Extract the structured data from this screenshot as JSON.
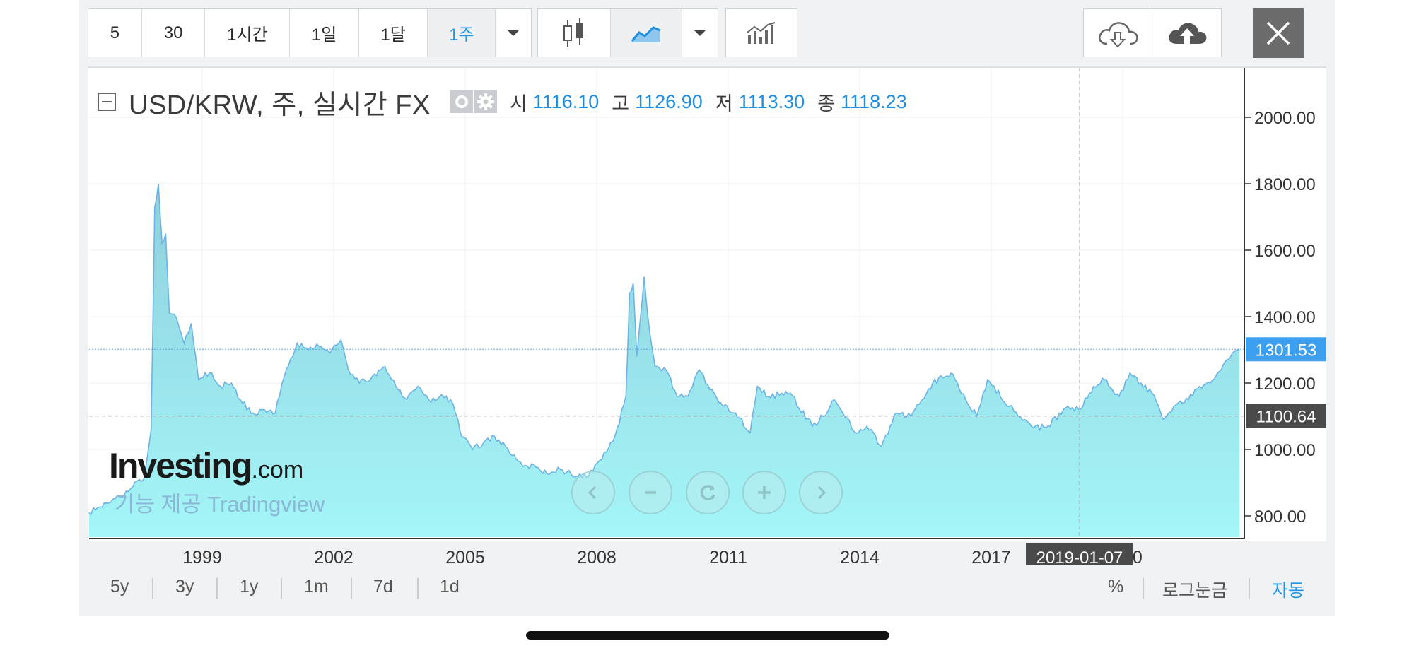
{
  "toolbar": {
    "intervals": [
      "5",
      "30",
      "1시간",
      "1일",
      "1달",
      "1주"
    ],
    "active_interval": "1주",
    "chart_type_icons": [
      "candlestick-icon",
      "area-chart-icon"
    ],
    "indicator_icon": "indicators-icon",
    "cloud_icons": [
      "cloud-download-icon",
      "cloud-upload-icon"
    ],
    "close_icon": "close-icon"
  },
  "legend": {
    "title": "USD/KRW, 주, 실시간 FX",
    "ohlc": [
      {
        "label": "시",
        "value": "1116.10"
      },
      {
        "label": "고",
        "value": "1126.90"
      },
      {
        "label": "저",
        "value": "1113.30"
      },
      {
        "label": "종",
        "value": "1118.23"
      }
    ]
  },
  "watermark": {
    "brand": "Investing",
    "brand_suffix": ".com",
    "sub": "기능 제공 Tradingview"
  },
  "range_buttons": [
    "5y",
    "3y",
    "1y",
    "1m",
    "7d",
    "1d"
  ],
  "right_options": [
    "%",
    "로그눈금",
    "자동"
  ],
  "active_option": "자동",
  "colors": {
    "accent": "#1e96e6",
    "line": "#6cb4e6",
    "area_top": "#8fcfdc",
    "area_bottom": "#a4f6f8"
  },
  "chart_data": {
    "type": "area",
    "title": "USD/KRW, 주, 실시간 FX",
    "xlabel": "",
    "ylabel": "",
    "x_ticks": [
      "1999",
      "2002",
      "2005",
      "2008",
      "2011",
      "2014",
      "2017",
      "2020"
    ],
    "y_ticks": [
      "800.00",
      "1000.00",
      "1200.00",
      "1400.00",
      "1600.00",
      "1800.00",
      "2000.00"
    ],
    "ylim": [
      700,
      2140
    ],
    "xlim": [
      "1996-06-01",
      "2022-10-15"
    ],
    "price_label": "1301.53",
    "crosshair_price": "1100.64",
    "crosshair_date": "2019-01-07",
    "grid": true,
    "series": [
      {
        "values": [
          [
            "1996-06",
            810
          ],
          [
            "1996-12",
            842
          ],
          [
            "1997-06",
            888
          ],
          [
            "1997-09",
            910
          ],
          [
            "1997-11",
            1060
          ],
          [
            "1997-12",
            1730
          ],
          [
            "1998-01",
            1800
          ],
          [
            "1998-02",
            1620
          ],
          [
            "1998-03",
            1650
          ],
          [
            "1998-04",
            1410
          ],
          [
            "1998-06",
            1395
          ],
          [
            "1998-08",
            1320
          ],
          [
            "1998-10",
            1380
          ],
          [
            "1998-12",
            1210
          ],
          [
            "1999-03",
            1230
          ],
          [
            "1999-06",
            1190
          ],
          [
            "1999-09",
            1200
          ],
          [
            "1999-12",
            1140
          ],
          [
            "2000-03",
            1110
          ],
          [
            "2000-06",
            1120
          ],
          [
            "2000-09",
            1110
          ],
          [
            "2000-12",
            1240
          ],
          [
            "2001-03",
            1320
          ],
          [
            "2001-06",
            1300
          ],
          [
            "2001-09",
            1310
          ],
          [
            "2001-12",
            1290
          ],
          [
            "2002-03",
            1330
          ],
          [
            "2002-05",
            1240
          ],
          [
            "2002-08",
            1200
          ],
          [
            "2002-11",
            1210
          ],
          [
            "2003-03",
            1250
          ],
          [
            "2003-06",
            1190
          ],
          [
            "2003-09",
            1150
          ],
          [
            "2003-12",
            1190
          ],
          [
            "2004-03",
            1150
          ],
          [
            "2004-06",
            1160
          ],
          [
            "2004-09",
            1150
          ],
          [
            "2004-11",
            1090
          ],
          [
            "2004-12",
            1040
          ],
          [
            "2005-03",
            1000
          ],
          [
            "2005-06",
            1020
          ],
          [
            "2005-09",
            1040
          ],
          [
            "2005-12",
            1010
          ],
          [
            "2006-03",
            970
          ],
          [
            "2006-06",
            950
          ],
          [
            "2006-09",
            945
          ],
          [
            "2006-12",
            925
          ],
          [
            "2007-03",
            940
          ],
          [
            "2007-06",
            925
          ],
          [
            "2007-09",
            915
          ],
          [
            "2007-12",
            935
          ],
          [
            "2008-03",
            990
          ],
          [
            "2008-06",
            1040
          ],
          [
            "2008-09",
            1160
          ],
          [
            "2008-10",
            1470
          ],
          [
            "2008-11",
            1500
          ],
          [
            "2008-12",
            1280
          ],
          [
            "2009-02",
            1520
          ],
          [
            "2009-03",
            1400
          ],
          [
            "2009-05",
            1250
          ],
          [
            "2009-08",
            1240
          ],
          [
            "2009-11",
            1160
          ],
          [
            "2010-02",
            1160
          ],
          [
            "2010-05",
            1240
          ],
          [
            "2010-08",
            1180
          ],
          [
            "2010-11",
            1140
          ],
          [
            "2011-03",
            1110
          ],
          [
            "2011-07",
            1050
          ],
          [
            "2011-09",
            1190
          ],
          [
            "2011-12",
            1160
          ],
          [
            "2012-06",
            1170
          ],
          [
            "2012-12",
            1070
          ],
          [
            "2013-03",
            1100
          ],
          [
            "2013-06",
            1150
          ],
          [
            "2013-12",
            1050
          ],
          [
            "2014-03",
            1070
          ],
          [
            "2014-07",
            1010
          ],
          [
            "2014-11",
            1110
          ],
          [
            "2015-03",
            1100
          ],
          [
            "2015-09",
            1200
          ],
          [
            "2016-02",
            1230
          ],
          [
            "2016-06",
            1150
          ],
          [
            "2016-09",
            1100
          ],
          [
            "2016-12",
            1210
          ],
          [
            "2017-06",
            1130
          ],
          [
            "2017-12",
            1070
          ],
          [
            "2018-04",
            1065
          ],
          [
            "2018-10",
            1130
          ],
          [
            "2019-01",
            1120
          ],
          [
            "2019-05",
            1190
          ],
          [
            "2019-08",
            1210
          ],
          [
            "2019-12",
            1160
          ],
          [
            "2020-03",
            1230
          ],
          [
            "2020-06",
            1200
          ],
          [
            "2020-09",
            1170
          ],
          [
            "2020-12",
            1090
          ],
          [
            "2021-03",
            1130
          ],
          [
            "2021-07",
            1150
          ],
          [
            "2021-10",
            1190
          ],
          [
            "2022-01",
            1200
          ],
          [
            "2022-04",
            1240
          ],
          [
            "2022-07",
            1290
          ],
          [
            "2022-09",
            1301.53
          ]
        ]
      }
    ]
  }
}
